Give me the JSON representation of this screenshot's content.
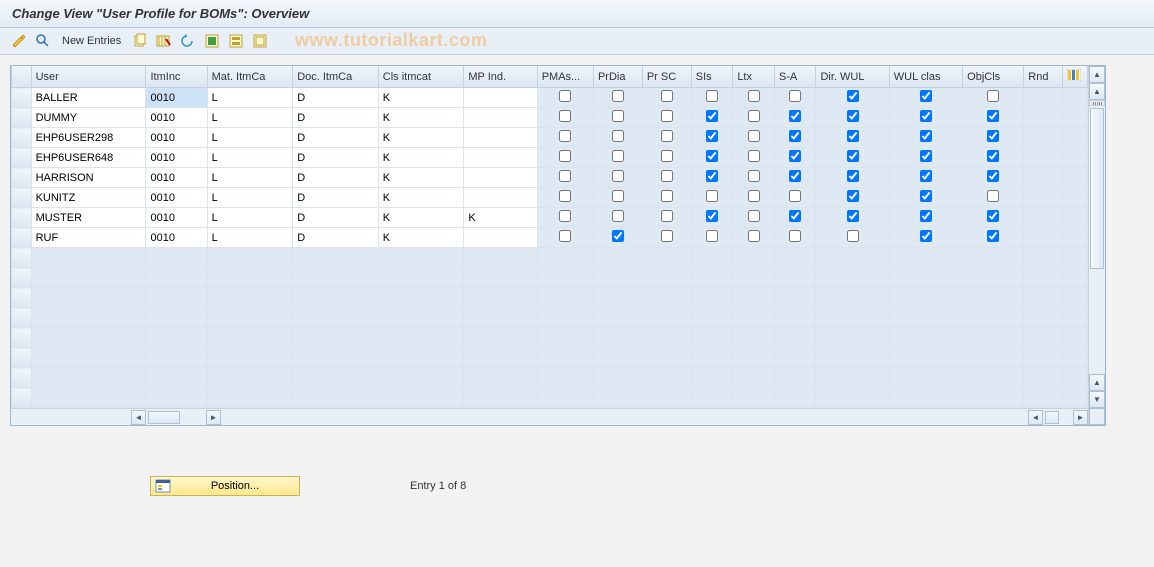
{
  "title": "Change View \"User Profile for BOMs\": Overview",
  "watermark": "www.tutorialkart.com",
  "toolbar": {
    "new_entries_label": "New Entries",
    "icons": {
      "toggle": "toggle-icon",
      "glasses": "glasses-icon",
      "copy": "copy-icon",
      "save": "save-icon",
      "undo": "undo-icon",
      "select_all": "select-all-icon",
      "save2": "save2-icon",
      "deselect": "deselect-icon"
    }
  },
  "grid": {
    "columns": [
      {
        "key": "user",
        "label": "User",
        "width": 94
      },
      {
        "key": "itminc",
        "label": "ItmInc",
        "width": 50
      },
      {
        "key": "matitmca",
        "label": "Mat. ItmCa",
        "width": 70
      },
      {
        "key": "docitmca",
        "label": "Doc. ItmCa",
        "width": 70
      },
      {
        "key": "clsitmcat",
        "label": "Cls itmcat",
        "width": 70
      },
      {
        "key": "mpind",
        "label": "MP Ind.",
        "width": 60
      },
      {
        "key": "pmas",
        "label": "PMAs...",
        "width": 46,
        "chk": true
      },
      {
        "key": "prdia",
        "label": "PrDia",
        "width": 40,
        "chk": true
      },
      {
        "key": "prsc",
        "label": "Pr SC",
        "width": 40,
        "chk": true
      },
      {
        "key": "sis",
        "label": "SIs",
        "width": 34,
        "chk": true
      },
      {
        "key": "ltx",
        "label": "Ltx",
        "width": 34,
        "chk": true
      },
      {
        "key": "sa",
        "label": "S-A",
        "width": 34,
        "chk": true
      },
      {
        "key": "dirwul",
        "label": "Dir. WUL",
        "width": 60,
        "chk": true
      },
      {
        "key": "wulclas",
        "label": "WUL clas",
        "width": 60,
        "chk": true
      },
      {
        "key": "objcls",
        "label": "ObjCls",
        "width": 50,
        "chk": true
      },
      {
        "key": "rnd",
        "label": "Rnd",
        "width": 32,
        "chk": false
      }
    ],
    "rows": [
      {
        "user": "BALLER",
        "itminc": "0010",
        "matitmca": "L",
        "docitmca": "D",
        "clsitmcat": "K",
        "mpind": "",
        "pmas": false,
        "prdia": false,
        "prsc": false,
        "sis": false,
        "ltx": false,
        "sa": false,
        "dirwul": true,
        "wulclas": true,
        "objcls": false,
        "selected": true
      },
      {
        "user": "DUMMY",
        "itminc": "0010",
        "matitmca": "L",
        "docitmca": "D",
        "clsitmcat": "K",
        "mpind": "",
        "pmas": false,
        "prdia": false,
        "prsc": false,
        "sis": true,
        "ltx": false,
        "sa": true,
        "dirwul": true,
        "wulclas": true,
        "objcls": true
      },
      {
        "user": "EHP6USER298",
        "itminc": "0010",
        "matitmca": "L",
        "docitmca": "D",
        "clsitmcat": "K",
        "mpind": "",
        "pmas": false,
        "prdia": false,
        "prsc": false,
        "sis": true,
        "ltx": false,
        "sa": true,
        "dirwul": true,
        "wulclas": true,
        "objcls": true
      },
      {
        "user": "EHP6USER648",
        "itminc": "0010",
        "matitmca": "L",
        "docitmca": "D",
        "clsitmcat": "K",
        "mpind": "",
        "pmas": false,
        "prdia": false,
        "prsc": false,
        "sis": true,
        "ltx": false,
        "sa": true,
        "dirwul": true,
        "wulclas": true,
        "objcls": true
      },
      {
        "user": "HARRISON",
        "itminc": "0010",
        "matitmca": "L",
        "docitmca": "D",
        "clsitmcat": "K",
        "mpind": "",
        "pmas": false,
        "prdia": false,
        "prsc": false,
        "sis": true,
        "ltx": false,
        "sa": true,
        "dirwul": true,
        "wulclas": true,
        "objcls": true
      },
      {
        "user": "KUNITZ",
        "itminc": "0010",
        "matitmca": "L",
        "docitmca": "D",
        "clsitmcat": "K",
        "mpind": "",
        "pmas": false,
        "prdia": false,
        "prsc": false,
        "sis": false,
        "ltx": false,
        "sa": false,
        "dirwul": true,
        "wulclas": true,
        "objcls": false
      },
      {
        "user": "MUSTER",
        "itminc": "0010",
        "matitmca": "L",
        "docitmca": "D",
        "clsitmcat": "K",
        "mpind": "K",
        "pmas": false,
        "prdia": false,
        "prsc": false,
        "sis": true,
        "ltx": false,
        "sa": true,
        "dirwul": true,
        "wulclas": true,
        "objcls": true
      },
      {
        "user": "RUF",
        "itminc": "0010",
        "matitmca": "L",
        "docitmca": "D",
        "clsitmcat": "K",
        "mpind": "",
        "pmas": false,
        "prdia": true,
        "prsc": false,
        "sis": false,
        "ltx": false,
        "sa": false,
        "dirwul": false,
        "wulclas": true,
        "objcls": true
      }
    ],
    "empty_rows": 8
  },
  "footer": {
    "position_label": "Position...",
    "entry_label": "Entry 1 of 8"
  },
  "colors": {
    "header_bg_top": "#eef4fa",
    "header_bg_bot": "#dce7f2",
    "cell_bg": "#ffffff",
    "chk_bg": "#dfe9f3",
    "sel_bg": "#cde3f7",
    "border": "#c5d0dd"
  }
}
